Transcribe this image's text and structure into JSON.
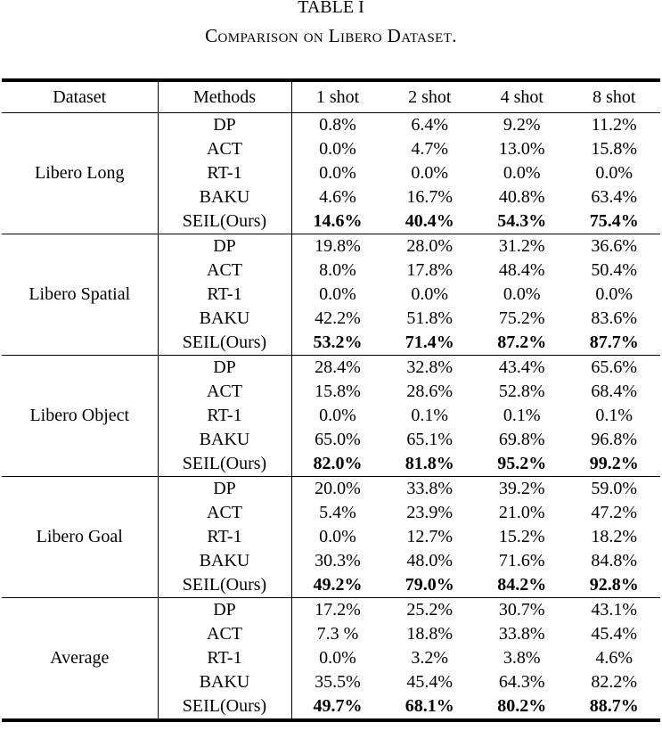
{
  "page": {
    "table_number": "TABLE I",
    "caption": "Comparison on Libero Dataset."
  },
  "colors": {
    "text": "#000000",
    "background": "#ffffff",
    "rule": "#000000"
  },
  "table": {
    "columns": [
      "Dataset",
      "Methods",
      "1 shot",
      "2 shot",
      "4 shot",
      "8 shot"
    ],
    "groups": [
      {
        "dataset": "Libero Long",
        "rows": [
          {
            "method": "DP",
            "values": [
              "0.8%",
              "6.4%",
              "9.2%",
              "11.2%"
            ],
            "bold": false
          },
          {
            "method": "ACT",
            "values": [
              "0.0%",
              "4.7%",
              "13.0%",
              "15.8%"
            ],
            "bold": false
          },
          {
            "method": "RT-1",
            "values": [
              "0.0%",
              "0.0%",
              "0.0%",
              "0.0%"
            ],
            "bold": false
          },
          {
            "method": "BAKU",
            "values": [
              "4.6%",
              "16.7%",
              "40.8%",
              "63.4%"
            ],
            "bold": false
          },
          {
            "method": "SEIL(Ours)",
            "values": [
              "14.6%",
              "40.4%",
              "54.3%",
              "75.4%"
            ],
            "bold": true
          }
        ]
      },
      {
        "dataset": "Libero Spatial",
        "rows": [
          {
            "method": "DP",
            "values": [
              "19.8%",
              "28.0%",
              "31.2%",
              "36.6%"
            ],
            "bold": false
          },
          {
            "method": "ACT",
            "values": [
              "8.0%",
              "17.8%",
              "48.4%",
              "50.4%"
            ],
            "bold": false
          },
          {
            "method": "RT-1",
            "values": [
              "0.0%",
              "0.0%",
              "0.0%",
              "0.0%"
            ],
            "bold": false
          },
          {
            "method": "BAKU",
            "values": [
              "42.2%",
              "51.8%",
              "75.2%",
              "83.6%"
            ],
            "bold": false
          },
          {
            "method": "SEIL(Ours)",
            "values": [
              "53.2%",
              "71.4%",
              "87.2%",
              "87.7%"
            ],
            "bold": true
          }
        ]
      },
      {
        "dataset": "Libero Object",
        "rows": [
          {
            "method": "DP",
            "values": [
              "28.4%",
              "32.8%",
              "43.4%",
              "65.6%"
            ],
            "bold": false
          },
          {
            "method": "ACT",
            "values": [
              "15.8%",
              "28.6%",
              "52.8%",
              "68.4%"
            ],
            "bold": false
          },
          {
            "method": "RT-1",
            "values": [
              "0.0%",
              "0.1%",
              "0.1%",
              "0.1%"
            ],
            "bold": false
          },
          {
            "method": "BAKU",
            "values": [
              "65.0%",
              "65.1%",
              "69.8%",
              "96.8%"
            ],
            "bold": false
          },
          {
            "method": "SEIL(Ours)",
            "values": [
              "82.0%",
              "81.8%",
              "95.2%",
              "99.2%"
            ],
            "bold": true
          }
        ]
      },
      {
        "dataset": "Libero Goal",
        "rows": [
          {
            "method": "DP",
            "values": [
              "20.0%",
              "33.8%",
              "39.2%",
              "59.0%"
            ],
            "bold": false
          },
          {
            "method": "ACT",
            "values": [
              "5.4%",
              "23.9%",
              "21.0%",
              "47.2%"
            ],
            "bold": false
          },
          {
            "method": "RT-1",
            "values": [
              "0.0%",
              "12.7%",
              "15.2%",
              "18.2%"
            ],
            "bold": false
          },
          {
            "method": "BAKU",
            "values": [
              "30.3%",
              "48.0%",
              "71.6%",
              "84.8%"
            ],
            "bold": false
          },
          {
            "method": "SEIL(Ours)",
            "values": [
              "49.2%",
              "79.0%",
              "84.2%",
              "92.8%"
            ],
            "bold": true
          }
        ]
      },
      {
        "dataset": "Average",
        "rows": [
          {
            "method": "DP",
            "values": [
              "17.2%",
              "25.2%",
              "30.7%",
              "43.1%"
            ],
            "bold": false
          },
          {
            "method": "ACT",
            "values": [
              "7.3 %",
              "18.8%",
              "33.8%",
              "45.4%"
            ],
            "bold": false
          },
          {
            "method": "RT-1",
            "values": [
              "0.0%",
              "3.2%",
              "3.8%",
              "4.6%"
            ],
            "bold": false
          },
          {
            "method": "BAKU",
            "values": [
              "35.5%",
              "45.4%",
              "64.3%",
              "82.2%"
            ],
            "bold": false
          },
          {
            "method": "SEIL(Ours)",
            "values": [
              "49.7%",
              "68.1%",
              "80.2%",
              "88.7%"
            ],
            "bold": true
          }
        ]
      }
    ]
  }
}
